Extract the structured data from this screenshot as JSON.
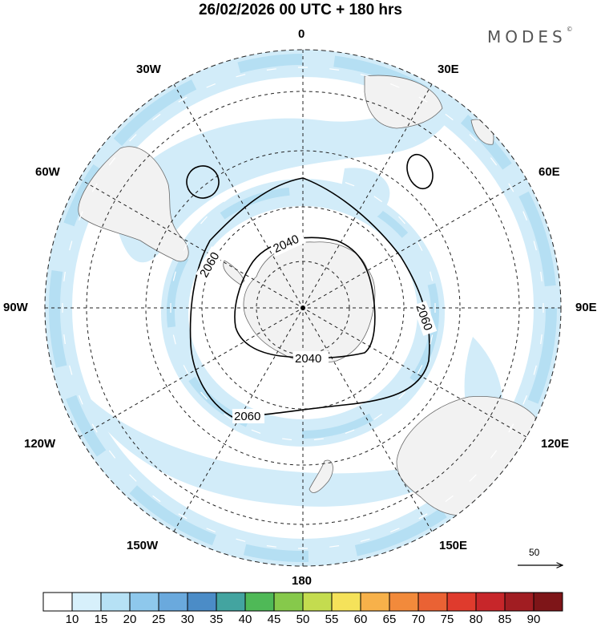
{
  "title": "26/02/2026  00 UTC  + 180 hrs",
  "brand": "MODES",
  "brand_mark": "©",
  "longitude_labels": {
    "l0": "0",
    "l30e": "30E",
    "l60e": "60E",
    "l90e": "90E",
    "l120e": "120E",
    "l150e": "150E",
    "l180": "180",
    "l150w": "150W",
    "l120w": "120W",
    "l90w": "90W",
    "l60w": "60W",
    "l30w": "30W"
  },
  "contours": {
    "c2040_top": "2040",
    "c2040_bottom": "2040",
    "c2060_left": "2060",
    "c2060_right": "2060",
    "c2060_bottom": "2060"
  },
  "reference_vector": "50",
  "colorbar": {
    "ticks": [
      "10",
      "15",
      "20",
      "25",
      "30",
      "35",
      "40",
      "45",
      "50",
      "55",
      "60",
      "65",
      "70",
      "75",
      "80",
      "85",
      "90"
    ],
    "colors": [
      "#ffffff",
      "#d7f0fb",
      "#b6e1f5",
      "#8ec8ec",
      "#6aa9dd",
      "#4b8cc7",
      "#43a4a0",
      "#4fb957",
      "#86c94b",
      "#c4dc4f",
      "#f5e25a",
      "#f7b14a",
      "#f28a3b",
      "#ea6234",
      "#df3b2d",
      "#c7262a",
      "#a11d22",
      "#7e1518"
    ]
  }
}
